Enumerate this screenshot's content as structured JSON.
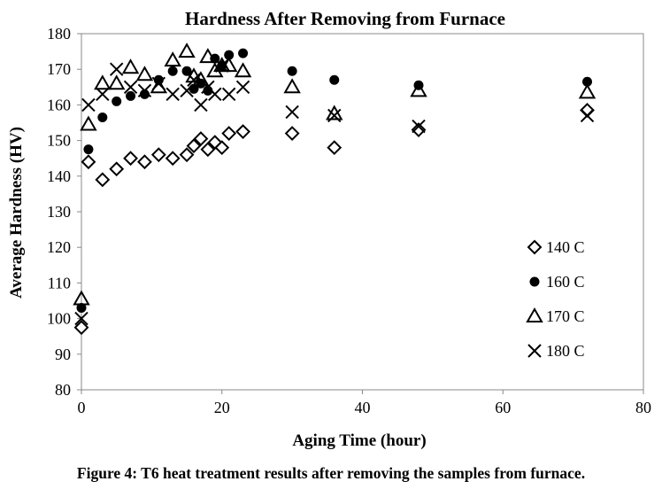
{
  "chart_data": {
    "type": "scatter",
    "title": "Hardness After Removing from Furnace",
    "xlabel": "Aging Time (hour)",
    "ylabel": "Average Hardness (HV)",
    "xlim": [
      0,
      80
    ],
    "ylim": [
      80,
      180
    ],
    "xticks": [
      0,
      20,
      40,
      60,
      80
    ],
    "yticks": [
      80,
      90,
      100,
      110,
      120,
      130,
      140,
      150,
      160,
      170,
      180
    ],
    "grid": false,
    "legend_position": "right",
    "series": [
      {
        "name": "140 C",
        "marker": "diamond",
        "x": [
          0,
          1,
          3,
          5,
          7,
          9,
          11,
          13,
          15,
          16,
          17,
          18,
          19,
          20,
          21,
          23,
          30,
          36,
          48,
          72
        ],
        "y": [
          97.5,
          144,
          139,
          142,
          145,
          144,
          146,
          145,
          146,
          148.5,
          150.5,
          147.5,
          149.5,
          148,
          152,
          152.5,
          152,
          148,
          153,
          158.5
        ]
      },
      {
        "name": "160 C",
        "marker": "circle",
        "x": [
          0,
          1,
          3,
          5,
          7,
          9,
          11,
          13,
          15,
          16,
          17,
          18,
          19,
          20,
          21,
          23,
          30,
          36,
          48,
          72
        ],
        "y": [
          103,
          147.5,
          156.5,
          161,
          162.5,
          163,
          167,
          169.5,
          169.5,
          164.5,
          166,
          164,
          173,
          171,
          174,
          174.5,
          169.5,
          167,
          165.5,
          166.5
        ]
      },
      {
        "name": "170 C",
        "marker": "triangle",
        "x": [
          0,
          1,
          3,
          5,
          7,
          9,
          11,
          13,
          15,
          16,
          17,
          18,
          19,
          20,
          21,
          23,
          30,
          36,
          48,
          72
        ],
        "y": [
          105.5,
          154.5,
          166,
          166,
          170.5,
          168.5,
          165,
          172.5,
          175,
          168,
          167,
          173.5,
          169.5,
          171,
          171,
          169.5,
          165,
          157.5,
          164,
          163.5
        ]
      },
      {
        "name": "180 C",
        "marker": "x",
        "x": [
          0,
          1,
          3,
          5,
          7,
          9,
          11,
          13,
          15,
          16,
          17,
          18,
          19,
          20,
          21,
          23,
          30,
          36,
          48,
          72
        ],
        "y": [
          100,
          160,
          163,
          170,
          165,
          164,
          166,
          163,
          164,
          167,
          160,
          165,
          163,
          171,
          163,
          165,
          158,
          157,
          154,
          157
        ]
      }
    ]
  },
  "caption": "Figure 4: T6 heat treatment results after removing the samples from furnace."
}
